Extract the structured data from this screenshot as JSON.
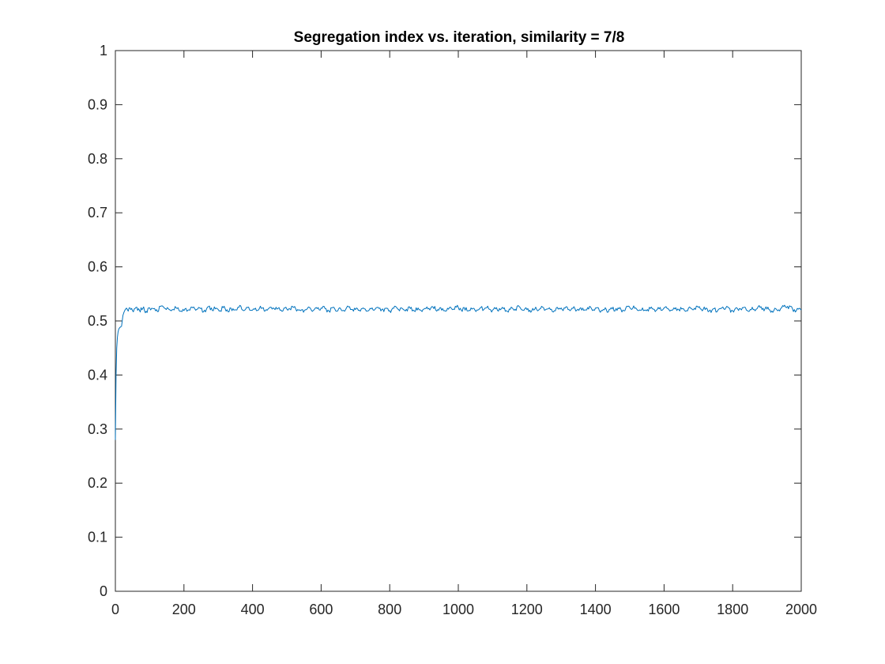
{
  "chart_data": {
    "type": "line",
    "title": "Segregation index vs. iteration, similarity = 7/8",
    "xlabel": "",
    "ylabel": "",
    "xlim": [
      0,
      2000
    ],
    "ylim": [
      0,
      1
    ],
    "x_ticks": [
      0,
      200,
      400,
      600,
      800,
      1000,
      1200,
      1400,
      1600,
      1800,
      2000
    ],
    "y_ticks": [
      0,
      0.1,
      0.2,
      0.3,
      0.4,
      0.5,
      0.6,
      0.7,
      0.8,
      0.9,
      1
    ],
    "x_tick_labels": [
      "0",
      "200",
      "400",
      "600",
      "800",
      "1000",
      "1200",
      "1400",
      "1600",
      "1800",
      "2000"
    ],
    "y_tick_labels": [
      "0",
      "0.1",
      "0.2",
      "0.3",
      "0.4",
      "0.5",
      "0.6",
      "0.7",
      "0.8",
      "0.9",
      "1"
    ],
    "grid": false,
    "series": [
      {
        "color": "#0072BD",
        "x": [
          0,
          2,
          4,
          6,
          8,
          10,
          12,
          15,
          18,
          20,
          22,
          25,
          28,
          30,
          35,
          40,
          50,
          60,
          70,
          80,
          90,
          100,
          120,
          140,
          160,
          180,
          200,
          220,
          240,
          260,
          280,
          300,
          320,
          340,
          360,
          380,
          400,
          420,
          440,
          460,
          480,
          500,
          520,
          540,
          560,
          580,
          600,
          620,
          640,
          660,
          680,
          700,
          720,
          740,
          760,
          780,
          800,
          820,
          840,
          860,
          880,
          900,
          920,
          940,
          960,
          980,
          1000,
          1020,
          1040,
          1060,
          1080,
          1100,
          1120,
          1140,
          1160,
          1180,
          1200,
          1220,
          1240,
          1260,
          1280,
          1300,
          1320,
          1340,
          1360,
          1380,
          1400,
          1420,
          1440,
          1460,
          1480,
          1500,
          1520,
          1540,
          1560,
          1580,
          1600,
          1620,
          1640,
          1660,
          1680,
          1700,
          1720,
          1740,
          1760,
          1780,
          1800,
          1820,
          1840,
          1860,
          1880,
          1900,
          1920,
          1940,
          1960,
          1980,
          2000
        ],
        "values": [
          0.28,
          0.4,
          0.45,
          0.47,
          0.48,
          0.485,
          0.487,
          0.489,
          0.49,
          0.5,
          0.51,
          0.516,
          0.52,
          0.522,
          0.521,
          0.524,
          0.519,
          0.525,
          0.52,
          0.523,
          0.518,
          0.524,
          0.521,
          0.526,
          0.52,
          0.523,
          0.519,
          0.525,
          0.522,
          0.52,
          0.524,
          0.521,
          0.523,
          0.519,
          0.525,
          0.522,
          0.52,
          0.523,
          0.521,
          0.524,
          0.52,
          0.522,
          0.525,
          0.519,
          0.523,
          0.521,
          0.524,
          0.52,
          0.522,
          0.519,
          0.526,
          0.521,
          0.523,
          0.52,
          0.524,
          0.522,
          0.519,
          0.525,
          0.521,
          0.523,
          0.52,
          0.522,
          0.524,
          0.521,
          0.519,
          0.523,
          0.525,
          0.52,
          0.522,
          0.521,
          0.524,
          0.52,
          0.523,
          0.519,
          0.522,
          0.525,
          0.521,
          0.52,
          0.523,
          0.522,
          0.519,
          0.524,
          0.521,
          0.523,
          0.52,
          0.522,
          0.524,
          0.519,
          0.521,
          0.523,
          0.52,
          0.525,
          0.522,
          0.519,
          0.523,
          0.521,
          0.524,
          0.52,
          0.522,
          0.519,
          0.523,
          0.525,
          0.521,
          0.52,
          0.522,
          0.524,
          0.519,
          0.523,
          0.52,
          0.521,
          0.525,
          0.522,
          0.519,
          0.523,
          0.527,
          0.521,
          0.52
        ]
      }
    ]
  }
}
